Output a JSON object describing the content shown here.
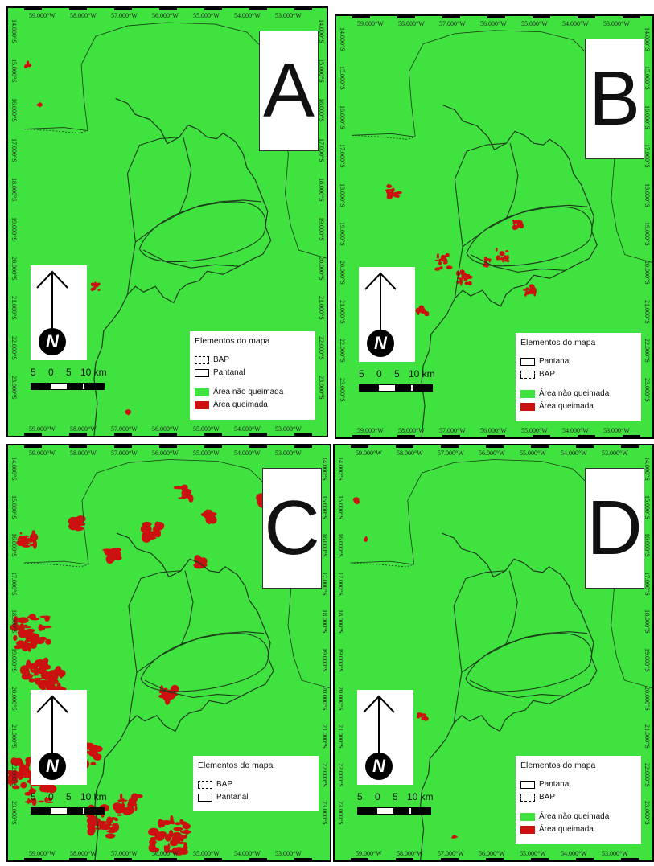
{
  "colors": {
    "unburned": "#3fe23f",
    "burned": "#cc1111",
    "outline": "#1a3a1a"
  },
  "panels": [
    {
      "letter": "A",
      "legend": {
        "title": "Elementos do mapa",
        "items": [
          {
            "label": "BAP",
            "style": "dashed"
          },
          {
            "label": "Pantanal",
            "style": "solid"
          },
          {
            "label": "Área não queimada",
            "style": "green"
          },
          {
            "label": "Área queimada",
            "style": "red"
          }
        ]
      },
      "top_labels": [
        "59.000°W",
        "58.000°W",
        "57.000°W",
        "56.000°W",
        "55.000°W",
        "54.000°W",
        "53.000°W"
      ],
      "bottom_labels": [
        "59.000°W",
        "58.000°W",
        "57.000°W",
        "56.000°W",
        "55.000°W",
        "54.000°W",
        "53.000°W"
      ],
      "left_labels": [
        "14.000°S",
        "15.000°S",
        "16.000°S",
        "17.000°S",
        "18.000°S",
        "19.000°S",
        "20.000°S",
        "21.000°S",
        "22.000°S",
        "23.000°S"
      ],
      "right_labels": [
        "14.000°S",
        "15.000°S",
        "16.000°S",
        "17.000°S",
        "18.000°S",
        "19.000°S",
        "20.000°S",
        "21.000°S",
        "22.000°S",
        "23.000°S"
      ],
      "scale": {
        "labels": [
          "5",
          "0",
          "5",
          "10 km"
        ]
      },
      "burn_level": "low"
    },
    {
      "letter": "B",
      "legend": {
        "title": "Elementos do mapa",
        "items": [
          {
            "label": "Pantanal",
            "style": "solid"
          },
          {
            "label": "BAP",
            "style": "dashed"
          },
          {
            "label": "Área não queimada",
            "style": "green"
          },
          {
            "label": "Área queimada",
            "style": "red"
          }
        ]
      },
      "top_labels": [
        "59.000°W",
        "58.000°W",
        "57.000°W",
        "56.000°W",
        "55.000°W",
        "54.000°W",
        "53.000°W"
      ],
      "bottom_labels": [
        "59.000°W",
        "58.000°W",
        "57.000°W",
        "56.000°W",
        "55.000°W",
        "54.000°W",
        "53.000°W"
      ],
      "left_labels": [
        "14.000°S",
        "15.000°S",
        "16.000°S",
        "17.000°S",
        "18.000°S",
        "19.000°S",
        "20.000°S",
        "21.000°S",
        "22.000°S",
        "23.000°S"
      ],
      "right_labels": [
        "14.000°S",
        "15.000°S",
        "16.000°S",
        "17.000°S",
        "18.000°S",
        "19.000°S",
        "20.000°S",
        "21.000°S",
        "22.000°S",
        "23.000°S"
      ],
      "scale": {
        "labels": [
          "5",
          "0",
          "5",
          "10 km"
        ]
      },
      "burn_level": "medium"
    },
    {
      "letter": "C",
      "legend": {
        "title": "Elementos do mapa",
        "items": [
          {
            "label": "BAP",
            "style": "dashed"
          },
          {
            "label": "Pantanal",
            "style": "solid"
          }
        ]
      },
      "top_labels": [
        "59.000°W",
        "58.000°W",
        "57.000°W",
        "56.000°W",
        "55.000°W",
        "54.000°W",
        "53.000°W"
      ],
      "bottom_labels": [
        "59.000°W",
        "58.000°W",
        "57.000°W",
        "56.000°W",
        "55.000°W",
        "54.000°W",
        "53.000°W"
      ],
      "left_labels": [
        "14.000°S",
        "15.000°S",
        "16.000°S",
        "17.000°S",
        "18.000°S",
        "19.000°S",
        "20.000°S",
        "21.000°S",
        "22.000°S",
        "23.000°S"
      ],
      "right_labels": [
        "14.000°S",
        "15.000°S",
        "16.000°S",
        "17.000°S",
        "18.000°S",
        "19.000°S",
        "20.000°S",
        "21.000°S",
        "22.000°S",
        "23.000°S"
      ],
      "scale": {
        "labels": [
          "5",
          "0",
          "5",
          "10 km"
        ]
      },
      "burn_level": "high"
    },
    {
      "letter": "D",
      "legend": {
        "title": "Elementos do mapa",
        "items": [
          {
            "label": "Pantanal",
            "style": "solid"
          },
          {
            "label": "BAP",
            "style": "dashed"
          },
          {
            "label": "Área não queimada",
            "style": "green"
          },
          {
            "label": "Área queimada",
            "style": "red"
          }
        ]
      },
      "top_labels": [
        "59.000°W",
        "58.000°W",
        "57.000°W",
        "56.000°W",
        "55.000°W",
        "54.000°W",
        "53.000°W"
      ],
      "bottom_labels": [
        "59.000°W",
        "58.000°W",
        "57.000°W",
        "56.000°W",
        "55.000°W",
        "54.000°W",
        "53.000°W"
      ],
      "left_labels": [
        "14.000°S",
        "15.000°S",
        "16.000°S",
        "17.000°S",
        "18.000°S",
        "19.000°S",
        "20.000°S",
        "21.000°S",
        "22.000°S",
        "23.000°S"
      ],
      "right_labels": [
        "14.000°S",
        "15.000°S",
        "16.000°S",
        "17.000°S",
        "18.000°S",
        "19.000°S",
        "20.000°S",
        "21.000°S",
        "22.000°S",
        "23.000°S"
      ],
      "scale": {
        "labels": [
          "5",
          "0",
          "5",
          "10 km"
        ]
      },
      "burn_level": "low"
    }
  ],
  "north_label": "N"
}
